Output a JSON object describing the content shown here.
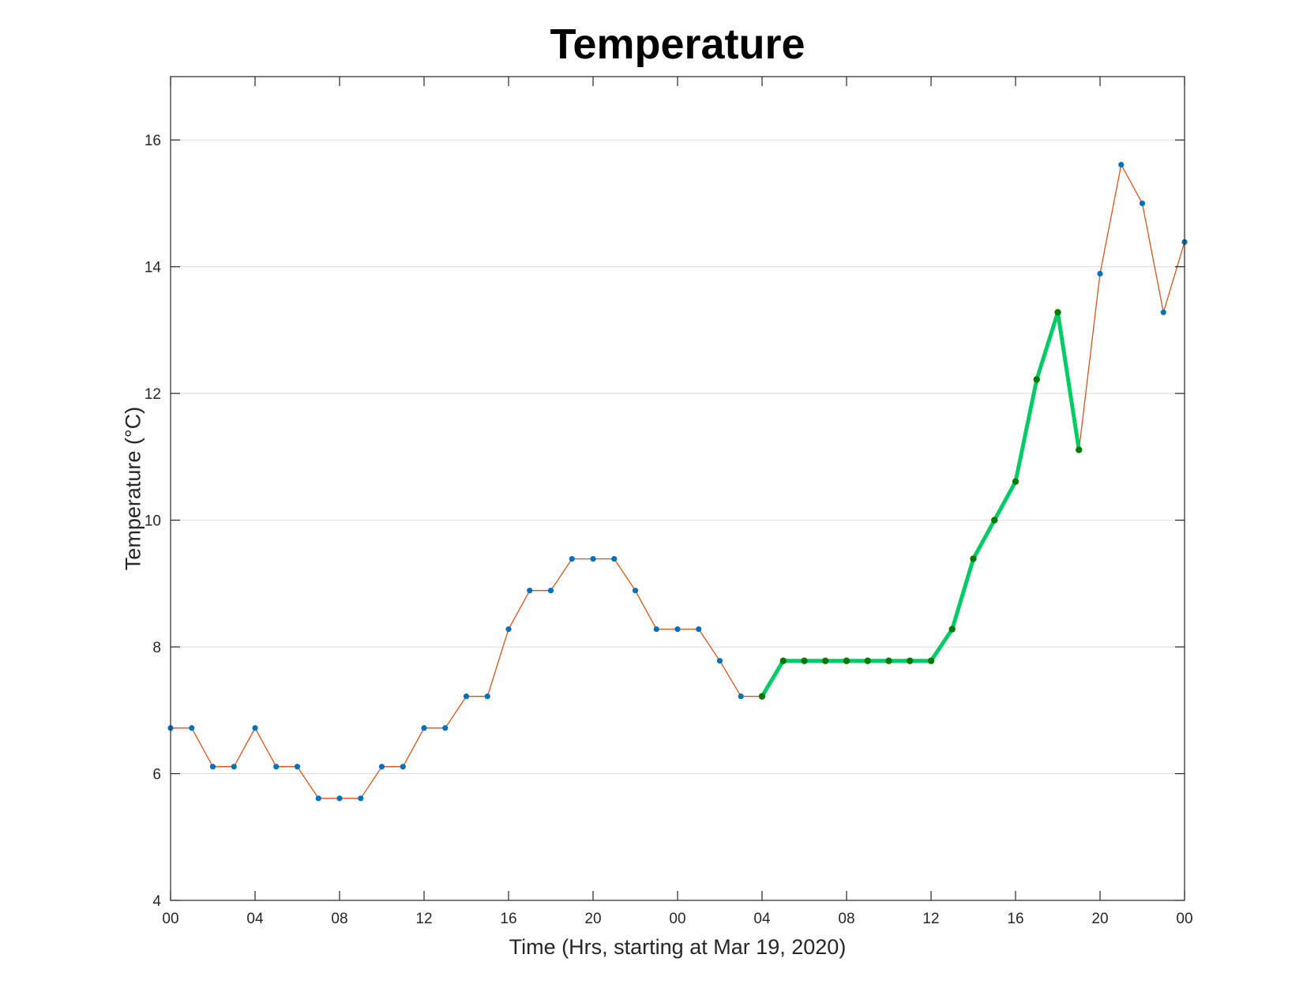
{
  "chart_data": {
    "type": "line",
    "title": "Temperature",
    "xlabel": "Time (Hrs, starting at Mar 19, 2020)",
    "ylabel": "Temperature (°C)",
    "xlim": [
      0,
      48
    ],
    "ylim": [
      4,
      17
    ],
    "grid": "horizontal",
    "x_ticks": [
      0,
      4,
      8,
      12,
      16,
      20,
      24,
      28,
      32,
      36,
      40,
      44,
      48
    ],
    "x_tick_labels": [
      "00",
      "04",
      "08",
      "12",
      "16",
      "20",
      "00",
      "04",
      "08",
      "12",
      "16",
      "20",
      "00"
    ],
    "y_ticks": [
      4,
      6,
      8,
      10,
      12,
      14,
      16
    ],
    "y_tick_labels": [
      "4",
      "6",
      "8",
      "10",
      "12",
      "14",
      "16"
    ],
    "colors": {
      "all_line": "#d95319",
      "all_markers": "#0072bd",
      "highlight_line": "#00cc66",
      "highlight_markers": "#007a00"
    },
    "series": [
      {
        "x": [
          0,
          1,
          2,
          3,
          4,
          5,
          6,
          7,
          8,
          9,
          10,
          11,
          12,
          13,
          14,
          15,
          16,
          17,
          18,
          19,
          20,
          21,
          22,
          23,
          24,
          25,
          26,
          27,
          28,
          29,
          30,
          31,
          32,
          33,
          34,
          35,
          36,
          37,
          38,
          39,
          40,
          41,
          42,
          43,
          44,
          45,
          46,
          47,
          48
        ],
        "values": [
          6.72,
          6.72,
          6.11,
          6.11,
          6.72,
          6.11,
          6.11,
          5.61,
          5.61,
          5.61,
          6.11,
          6.11,
          6.72,
          6.72,
          7.22,
          7.22,
          8.28,
          8.89,
          8.89,
          9.39,
          9.39,
          9.39,
          8.89,
          8.28,
          8.28,
          8.28,
          7.78,
          7.22,
          7.22,
          7.78,
          7.78,
          7.78,
          7.78,
          7.78,
          7.78,
          7.78,
          7.78,
          8.28,
          9.39,
          10.0,
          10.61,
          12.22,
          13.28,
          11.11,
          13.89,
          15.61,
          15.0,
          13.28,
          14.39
        ]
      },
      {
        "x": [
          28,
          29,
          30,
          31,
          32,
          33,
          34,
          35,
          36,
          37,
          38,
          39,
          40,
          41,
          42,
          43
        ],
        "values": [
          7.22,
          7.78,
          7.78,
          7.78,
          7.78,
          7.78,
          7.78,
          7.78,
          7.78,
          8.28,
          9.39,
          10.0,
          10.61,
          12.22,
          13.28,
          11.11
        ]
      }
    ]
  }
}
